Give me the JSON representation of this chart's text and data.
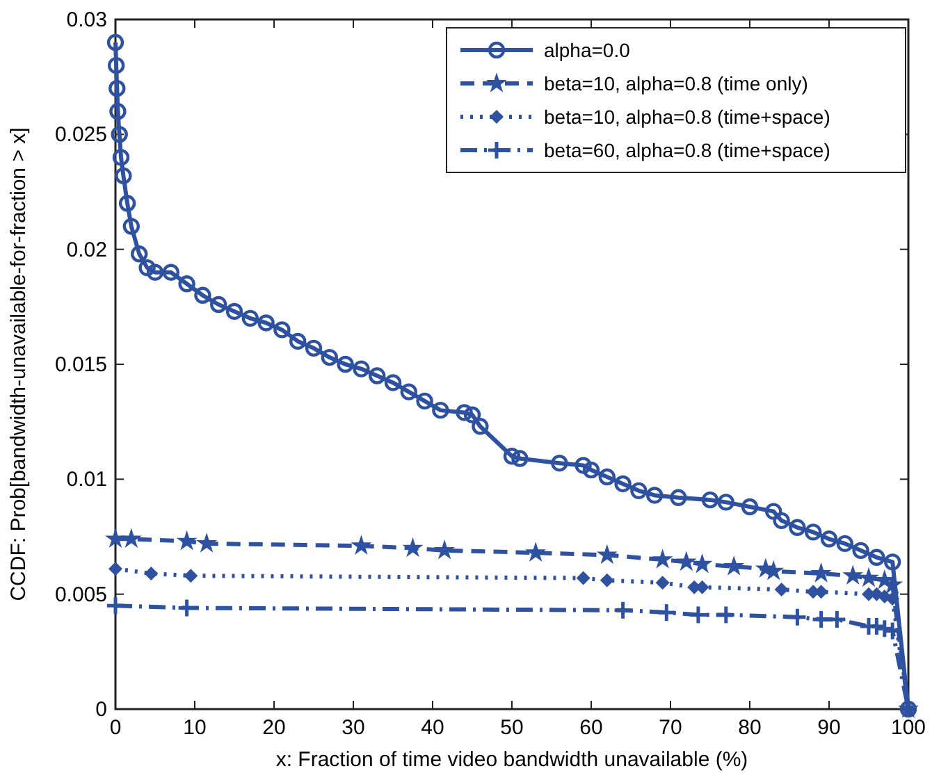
{
  "chart_data": {
    "type": "line",
    "xlabel": "x: Fraction of time video bandwidth unavailable (%)",
    "ylabel": "CCDF: Prob[bandwidth-unavailable-for-fraction > x]",
    "xlim": [
      0,
      100
    ],
    "ylim": [
      0,
      0.03
    ],
    "xticks": [
      0,
      10,
      20,
      30,
      40,
      50,
      60,
      70,
      80,
      90,
      100
    ],
    "yticks": [
      0,
      0.005,
      0.01,
      0.015,
      0.02,
      0.025,
      0.03
    ],
    "grid": false,
    "legend": "top right",
    "series": [
      {
        "name": "alpha=0.0",
        "color": "#2f52a0",
        "marker": "circle",
        "line_style": "solid",
        "x": [
          0,
          0.1,
          0.2,
          0.3,
          0.5,
          0.7,
          1,
          1.5,
          2,
          3,
          4,
          5,
          7,
          9,
          11,
          13,
          15,
          17,
          19,
          21,
          23,
          25,
          27,
          29,
          31,
          33,
          35,
          37,
          39,
          41,
          44,
          45,
          46,
          50,
          51,
          56,
          59,
          60,
          62,
          64,
          66,
          68,
          71,
          75,
          77,
          80,
          83,
          84,
          86,
          88,
          90,
          92,
          94,
          96,
          98,
          100
        ],
        "values": [
          0.029,
          0.028,
          0.027,
          0.026,
          0.025,
          0.024,
          0.0232,
          0.022,
          0.021,
          0.0198,
          0.0192,
          0.019,
          0.019,
          0.0185,
          0.018,
          0.0176,
          0.0173,
          0.017,
          0.0168,
          0.0165,
          0.016,
          0.0157,
          0.0153,
          0.015,
          0.0148,
          0.0145,
          0.0142,
          0.0138,
          0.0134,
          0.013,
          0.0129,
          0.0128,
          0.0123,
          0.011,
          0.0109,
          0.0107,
          0.0106,
          0.0104,
          0.0101,
          0.0098,
          0.0095,
          0.0093,
          0.0092,
          0.0091,
          0.009,
          0.0088,
          0.0086,
          0.0082,
          0.0079,
          0.0077,
          0.0074,
          0.0072,
          0.0069,
          0.0066,
          0.0064,
          0
        ]
      },
      {
        "name": "beta=10, alpha=0.8 (time only)",
        "color": "#2f52a0",
        "marker": "star",
        "line_style": "dashed",
        "x": [
          0,
          2,
          9,
          11.5,
          31,
          37.5,
          41.5,
          53,
          62,
          69,
          72,
          74,
          78,
          82,
          83,
          89,
          93,
          95,
          97,
          98,
          100
        ],
        "values": [
          0.0074,
          0.0074,
          0.0073,
          0.0072,
          0.0071,
          0.007,
          0.0069,
          0.0068,
          0.0067,
          0.0065,
          0.0064,
          0.0063,
          0.0062,
          0.0061,
          0.006,
          0.0059,
          0.0058,
          0.0057,
          0.0056,
          0.0054,
          0
        ]
      },
      {
        "name": "beta=10, alpha=0.8 (time+space)",
        "color": "#2f52a0",
        "marker": "diamond",
        "line_style": "dotted",
        "x": [
          0,
          4.5,
          9.5,
          59,
          62,
          69,
          73,
          74,
          84,
          88,
          89,
          95,
          96,
          97,
          98,
          100
        ],
        "values": [
          0.0061,
          0.0059,
          0.0058,
          0.0057,
          0.0056,
          0.0055,
          0.0053,
          0.0053,
          0.0052,
          0.0051,
          0.0051,
          0.005,
          0.005,
          0.0049,
          0.0048,
          0
        ]
      },
      {
        "name": "beta=60, alpha=0.8 (time+space)",
        "color": "#2f52a0",
        "marker": "cross",
        "line_style": "dashdot",
        "x": [
          0,
          9,
          64,
          69.5,
          73.5,
          77,
          86,
          89,
          91,
          95,
          96,
          97,
          98,
          100
        ],
        "values": [
          0.0045,
          0.0044,
          0.0043,
          0.0042,
          0.0041,
          0.0041,
          0.004,
          0.0039,
          0.0039,
          0.0036,
          0.0036,
          0.0035,
          0.0034,
          0
        ]
      }
    ]
  }
}
